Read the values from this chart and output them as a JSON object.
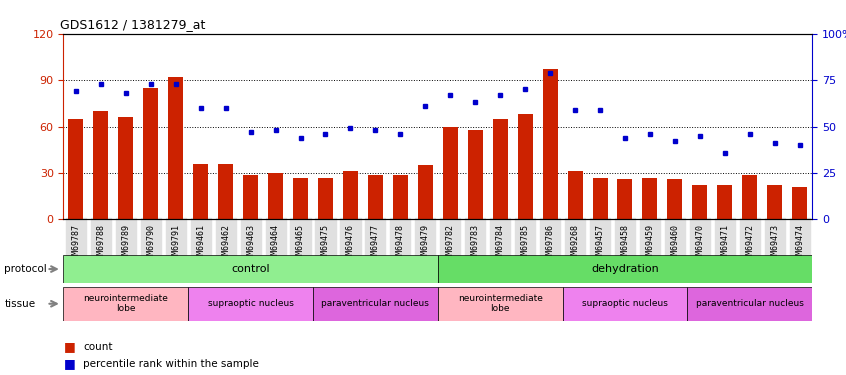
{
  "title": "GDS1612 / 1381279_at",
  "samples": [
    "GSM69787",
    "GSM69788",
    "GSM69789",
    "GSM69790",
    "GSM69791",
    "GSM69461",
    "GSM69462",
    "GSM69463",
    "GSM69464",
    "GSM69465",
    "GSM69475",
    "GSM69476",
    "GSM69477",
    "GSM69478",
    "GSM69479",
    "GSM69782",
    "GSM69783",
    "GSM69784",
    "GSM69785",
    "GSM69786",
    "GSM69268",
    "GSM69457",
    "GSM69458",
    "GSM69459",
    "GSM69460",
    "GSM69470",
    "GSM69471",
    "GSM69472",
    "GSM69473",
    "GSM69474"
  ],
  "counts": [
    65,
    70,
    66,
    85,
    92,
    36,
    36,
    29,
    30,
    27,
    27,
    31,
    29,
    29,
    35,
    60,
    58,
    65,
    68,
    97,
    31,
    27,
    26,
    27,
    26,
    22,
    22,
    29,
    22,
    21
  ],
  "percentiles": [
    69,
    73,
    68,
    73,
    73,
    60,
    60,
    47,
    48,
    44,
    46,
    49,
    48,
    46,
    61,
    67,
    63,
    67,
    70,
    79,
    59,
    59,
    44,
    46,
    42,
    45,
    36,
    46,
    41,
    40
  ],
  "bar_color": "#cc2200",
  "dot_color": "#0000cc",
  "ylim_left": [
    0,
    120
  ],
  "ylim_right": [
    0,
    100
  ],
  "left_yticks": [
    0,
    30,
    60,
    90,
    120
  ],
  "right_yticks": [
    0,
    25,
    50,
    75,
    100
  ],
  "grid_values": [
    30,
    60,
    90
  ],
  "protocol_groups": [
    {
      "label": "control",
      "start": 0,
      "end": 15,
      "color": "#90ee90"
    },
    {
      "label": "dehydration",
      "start": 15,
      "end": 30,
      "color": "#66dd66"
    }
  ],
  "tissue_groups": [
    {
      "label": "neurointermediate\nlobe",
      "start": 0,
      "end": 5,
      "color": "#ffb6c1"
    },
    {
      "label": "supraoptic nucleus",
      "start": 5,
      "end": 10,
      "color": "#ee82ee"
    },
    {
      "label": "paraventricular nucleus",
      "start": 10,
      "end": 15,
      "color": "#dd66dd"
    },
    {
      "label": "neurointermediate\nlobe",
      "start": 15,
      "end": 20,
      "color": "#ffb6c1"
    },
    {
      "label": "supraoptic nucleus",
      "start": 20,
      "end": 25,
      "color": "#ee82ee"
    },
    {
      "label": "paraventricular nucleus",
      "start": 25,
      "end": 30,
      "color": "#dd66dd"
    }
  ]
}
